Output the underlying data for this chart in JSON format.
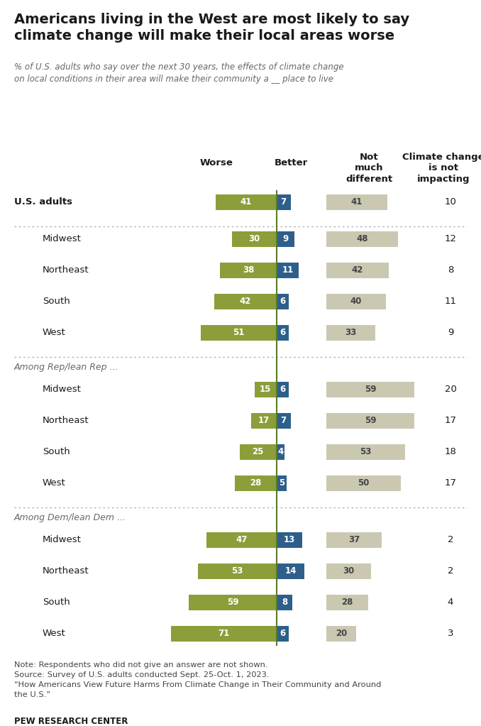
{
  "title": "Americans living in the West are most likely to say\nclimate change will make their local areas worse",
  "subtitle": "% of U.S. adults who say over the next 30 years, the effects of climate change\non local conditions in their area will make their community a __ place to live",
  "rows": [
    {
      "label": "U.S. adults",
      "worse": 41,
      "better": 7,
      "not_diff": 41,
      "not_impact": 10,
      "group": "overall"
    },
    {
      "label": "Midwest",
      "worse": 30,
      "better": 9,
      "not_diff": 48,
      "not_impact": 12,
      "group": "region"
    },
    {
      "label": "Northeast",
      "worse": 38,
      "better": 11,
      "not_diff": 42,
      "not_impact": 8,
      "group": "region"
    },
    {
      "label": "South",
      "worse": 42,
      "better": 6,
      "not_diff": 40,
      "not_impact": 11,
      "group": "region"
    },
    {
      "label": "West",
      "worse": 51,
      "better": 6,
      "not_diff": 33,
      "not_impact": 9,
      "group": "region"
    },
    {
      "label": "Among Rep/lean Rep ...",
      "worse": null,
      "better": null,
      "not_diff": null,
      "not_impact": null,
      "group": "header"
    },
    {
      "label": "Midwest",
      "worse": 15,
      "better": 6,
      "not_diff": 59,
      "not_impact": 20,
      "group": "rep"
    },
    {
      "label": "Northeast",
      "worse": 17,
      "better": 7,
      "not_diff": 59,
      "not_impact": 17,
      "group": "rep"
    },
    {
      "label": "South",
      "worse": 25,
      "better": 4,
      "not_diff": 53,
      "not_impact": 18,
      "group": "rep"
    },
    {
      "label": "West",
      "worse": 28,
      "better": 5,
      "not_diff": 50,
      "not_impact": 17,
      "group": "rep"
    },
    {
      "label": "Among Dem/lean Dem ...",
      "worse": null,
      "better": null,
      "not_diff": null,
      "not_impact": null,
      "group": "header"
    },
    {
      "label": "Midwest",
      "worse": 47,
      "better": 13,
      "not_diff": 37,
      "not_impact": 2,
      "group": "dem"
    },
    {
      "label": "Northeast",
      "worse": 53,
      "better": 14,
      "not_diff": 30,
      "not_impact": 2,
      "group": "dem"
    },
    {
      "label": "South",
      "worse": 59,
      "better": 8,
      "not_diff": 28,
      "not_impact": 4,
      "group": "dem"
    },
    {
      "label": "West",
      "worse": 71,
      "better": 6,
      "not_diff": 20,
      "not_impact": 3,
      "group": "dem"
    }
  ],
  "note": "Note: Respondents who did not give an answer are not shown.\nSource: Survey of U.S. adults conducted Sept. 25-Oct. 1, 2023.\n“How Americans View Future Harms From Climate Change in Their Community and Around\nthe U.S.”",
  "source_bold": "PEW RESEARCH CENTER",
  "color_worse": "#8b9e3a",
  "color_better": "#2e5f8a",
  "color_not_diff": "#cbc8b2",
  "background_color": "#ffffff",
  "divider_color": "#5a7a2a",
  "sep_color": "#aaaaaa",
  "label_color": "#1a1a1a",
  "header_color": "#666666",
  "note_color": "#444444"
}
